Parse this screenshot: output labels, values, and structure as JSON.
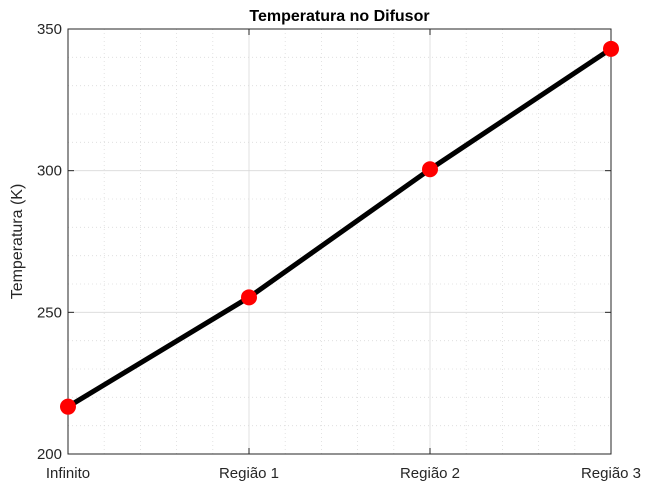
{
  "chart_data": {
    "type": "line",
    "title": "Temperatura no Difusor",
    "xlabel": "",
    "ylabel": "Temperatura (K)",
    "categories": [
      "Infinito",
      "Região 1",
      "Região 2",
      "Região 3"
    ],
    "series": [
      {
        "values": [
          216.7,
          255.3,
          300.5,
          343.0
        ],
        "line_color": "#000000",
        "marker_color": "#ff0000",
        "marker": "filled-circle"
      }
    ],
    "ylim": [
      200,
      350
    ],
    "yticks": [
      200,
      250,
      300,
      350
    ],
    "grid": true,
    "minor_grid": true,
    "legend": "none"
  }
}
